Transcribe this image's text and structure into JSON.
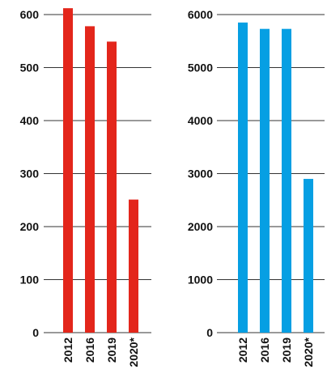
{
  "chart_data": [
    {
      "type": "bar",
      "categories": [
        "2012",
        "2016",
        "2019",
        "2020*"
      ],
      "values": [
        612,
        578,
        549,
        251
      ],
      "ylim": [
        0,
        600
      ],
      "yticks": [
        "0",
        "100",
        "200",
        "300",
        "400",
        "500",
        "600"
      ],
      "grid": true,
      "color": "#e3261b"
    },
    {
      "type": "bar",
      "categories": [
        "2012",
        "2016",
        "2019",
        "2020*"
      ],
      "values": [
        5850,
        5730,
        5730,
        2900
      ],
      "ylim": [
        0,
        6000
      ],
      "yticks": [
        "0",
        "1000",
        "2000",
        "3000",
        "4000",
        "5000",
        "6000"
      ],
      "grid": true,
      "color": "#069fe3"
    }
  ]
}
